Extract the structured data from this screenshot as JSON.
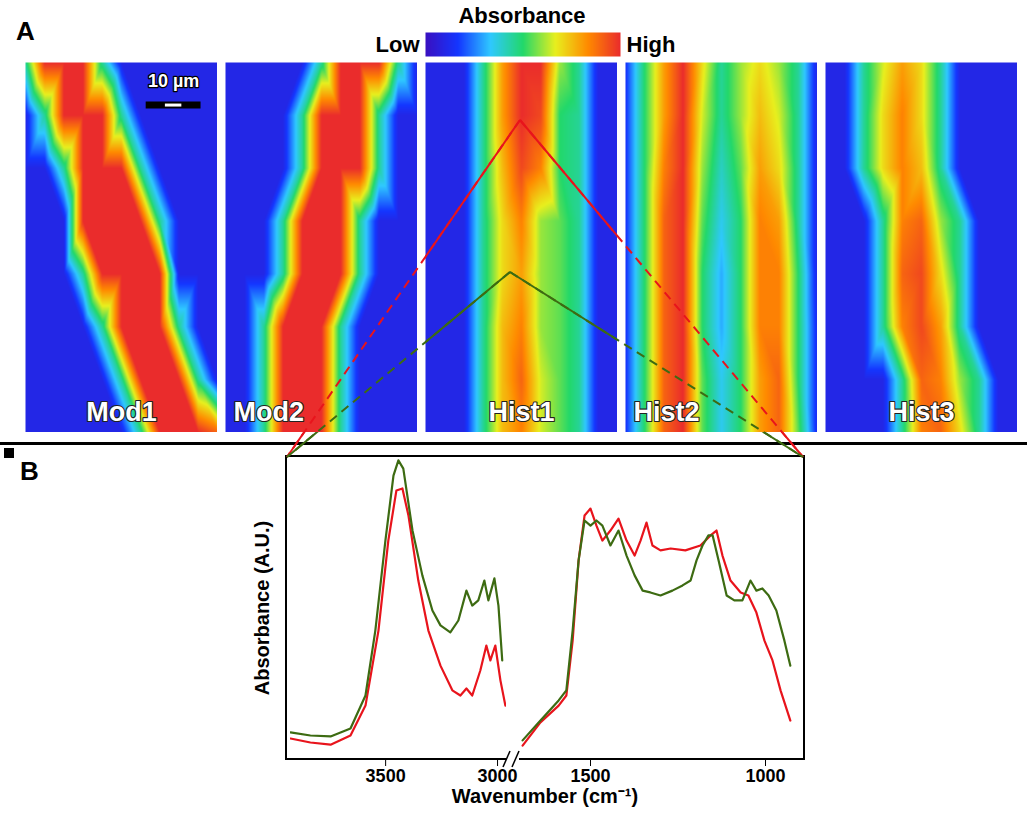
{
  "chart_data": [
    {
      "type": "heatmap",
      "label": "A",
      "colorbar": {
        "title": "Absorbance",
        "range": [
          0,
          1
        ],
        "ticks": [
          {
            "value": 0,
            "label": "Low"
          },
          {
            "value": 1,
            "label": "High"
          }
        ]
      },
      "xlim": [
        0,
        35
      ],
      "ylim": [
        0,
        70
      ],
      "x": [
        0,
        3.5,
        7,
        10.5,
        14,
        17.5,
        21,
        24.5,
        28,
        31.5,
        35
      ],
      "y": [
        0,
        10,
        20,
        30,
        40,
        50,
        60,
        70
      ],
      "scale_bar": {
        "value": 10,
        "label": "10 µm"
      },
      "panels": [
        {
          "title": "Mod1",
          "values": [
            [
              0.45,
              1,
              1,
              1,
              0.45,
              0.1,
              0.1,
              0.1,
              0.1,
              0.1,
              0.1
            ],
            [
              0.1,
              0.45,
              1,
              1,
              1,
              0.45,
              0.1,
              0.1,
              0.1,
              0.1,
              0.1
            ],
            [
              0.1,
              0.1,
              0.45,
              1,
              1,
              1,
              0.45,
              0.1,
              0.1,
              0.1,
              0.1
            ],
            [
              0.1,
              0.1,
              0.1,
              1,
              1,
              1,
              1,
              0.45,
              0.1,
              0.1,
              0.1
            ],
            [
              0.1,
              0.1,
              0.1,
              0.45,
              1,
              1,
              1,
              1,
              0.1,
              0.1,
              0.1
            ],
            [
              0.1,
              0.1,
              0.1,
              0.1,
              0.45,
              1,
              1,
              1,
              0.45,
              0.1,
              0.1
            ],
            [
              0.1,
              0.1,
              0.1,
              0.1,
              0.1,
              0.45,
              1,
              1,
              1,
              0.45,
              0.1
            ],
            [
              0.1,
              0.1,
              0.1,
              0.1,
              0.1,
              0.1,
              0.45,
              1,
              1,
              1,
              0.9
            ]
          ]
        },
        {
          "title": "Mod2",
          "values": [
            [
              0.1,
              0.1,
              0.1,
              0.1,
              0.1,
              0.45,
              1,
              1,
              1,
              0.45,
              0.1
            ],
            [
              0.1,
              0.1,
              0.1,
              0.1,
              0.45,
              1,
              1,
              1,
              0.45,
              0.1,
              0.1
            ],
            [
              0.1,
              0.1,
              0.1,
              0.1,
              0.45,
              1,
              1,
              1,
              0.45,
              0.1,
              0.1
            ],
            [
              0.1,
              0.1,
              0.1,
              0.45,
              1,
              1,
              1,
              0.45,
              0.1,
              0.1,
              0.1
            ],
            [
              0.1,
              0.1,
              0.1,
              0.45,
              1,
              1,
              1,
              0.45,
              0.1,
              0.1,
              0.1
            ],
            [
              0.1,
              0.1,
              0.45,
              1,
              1,
              1,
              0.45,
              0.1,
              0.1,
              0.1,
              0.1
            ],
            [
              0.1,
              0.1,
              0.45,
              1,
              1,
              1,
              0.45,
              0.1,
              0.1,
              0.1,
              0.1
            ],
            [
              0.1,
              0.1,
              0.45,
              1,
              1,
              1,
              0.45,
              0.1,
              0.1,
              0.1,
              0.1
            ]
          ]
        },
        {
          "title": "Hist1",
          "values": [
            [
              0.1,
              0.1,
              0.1,
              0.45,
              0.8,
              1,
              1,
              0.6,
              0.45,
              0.1,
              0.1
            ],
            [
              0.1,
              0.1,
              0.1,
              0.45,
              0.8,
              1,
              0.95,
              0.5,
              0.45,
              0.1,
              0.1
            ],
            [
              0.1,
              0.1,
              0.1,
              0.45,
              0.75,
              0.95,
              0.85,
              0.5,
              0.45,
              0.1,
              0.1
            ],
            [
              0.1,
              0.1,
              0.1,
              0.45,
              0.7,
              0.85,
              0.6,
              0.55,
              0.45,
              0.1,
              0.1
            ],
            [
              0.1,
              0.1,
              0.1,
              0.45,
              0.7,
              0.8,
              0.6,
              0.55,
              0.45,
              0.1,
              0.1
            ],
            [
              0.1,
              0.1,
              0.1,
              0.45,
              0.75,
              0.85,
              0.6,
              0.55,
              0.45,
              0.1,
              0.1
            ],
            [
              0.1,
              0.1,
              0.1,
              0.45,
              0.75,
              0.9,
              0.65,
              0.55,
              0.45,
              0.1,
              0.1
            ],
            [
              0.1,
              0.1,
              0.1,
              0.45,
              0.75,
              0.85,
              0.65,
              0.55,
              0.45,
              0.1,
              0.1
            ]
          ]
        },
        {
          "title": "Hist2",
          "values": [
            [
              0.15,
              0.5,
              0.8,
              1,
              0.7,
              0.45,
              0.6,
              0.7,
              0.6,
              0.45,
              0.1
            ],
            [
              0.15,
              0.5,
              0.8,
              1,
              0.65,
              0.45,
              0.6,
              0.75,
              0.65,
              0.45,
              0.1
            ],
            [
              0.15,
              0.5,
              0.85,
              1,
              0.6,
              0.4,
              0.55,
              0.8,
              0.7,
              0.45,
              0.1
            ],
            [
              0.15,
              0.5,
              0.9,
              1,
              0.55,
              0.35,
              0.5,
              0.85,
              0.8,
              0.45,
              0.1
            ],
            [
              0.15,
              0.5,
              0.9,
              1,
              0.5,
              0.3,
              0.5,
              0.85,
              0.85,
              0.5,
              0.1
            ],
            [
              0.15,
              0.5,
              0.9,
              1,
              0.5,
              0.3,
              0.5,
              0.85,
              0.85,
              0.5,
              0.12
            ],
            [
              0.15,
              0.5,
              0.9,
              1,
              0.55,
              0.35,
              0.5,
              0.8,
              0.9,
              0.5,
              0.12
            ],
            [
              0.15,
              0.5,
              0.9,
              1,
              0.55,
              0.35,
              0.5,
              0.8,
              0.9,
              0.55,
              0.12
            ]
          ]
        },
        {
          "title": "Hist3",
          "values": [
            [
              0.1,
              0.1,
              0.45,
              0.65,
              0.8,
              0.7,
              0.45,
              0.1,
              0.1,
              0.1,
              0.1
            ],
            [
              0.1,
              0.1,
              0.45,
              0.7,
              0.85,
              0.7,
              0.45,
              0.1,
              0.1,
              0.1,
              0.1
            ],
            [
              0.1,
              0.1,
              0.45,
              0.7,
              0.85,
              0.75,
              0.45,
              0.1,
              0.1,
              0.1,
              0.1
            ],
            [
              0.1,
              0.1,
              0.1,
              0.45,
              0.85,
              0.9,
              0.6,
              0.45,
              0.1,
              0.1,
              0.1
            ],
            [
              0.1,
              0.1,
              0.1,
              0.45,
              0.9,
              0.95,
              0.7,
              0.45,
              0.1,
              0.1,
              0.1
            ],
            [
              0.1,
              0.1,
              0.1,
              0.45,
              0.85,
              0.95,
              0.8,
              0.45,
              0.1,
              0.1,
              0.1
            ],
            [
              0.1,
              0.1,
              0.1,
              0.1,
              0.45,
              0.9,
              0.85,
              0.6,
              0.45,
              0.1,
              0.1
            ],
            [
              0.1,
              0.1,
              0.1,
              0.1,
              0.45,
              0.85,
              0.9,
              0.7,
              0.45,
              0.1,
              0.1
            ]
          ]
        }
      ]
    },
    {
      "type": "line",
      "label": "B",
      "xlabel": "Wavenumber (cm⁻¹)",
      "ylabel": "Absorbance (A.U.)",
      "ylim": [
        0,
        1
      ],
      "tick_labels": "x",
      "segments": [
        {
          "xlim": [
            3925,
            2960
          ],
          "xticks": [
            3500,
            3000
          ],
          "series": [
            {
              "color": "#e8141c",
              "x": [
                3925,
                3836,
                3746,
                3657,
                3590,
                3532,
                3488,
                3452,
                3425,
                3398,
                3354,
                3309,
                3255,
                3202,
                3166,
                3139,
                3113,
                3077,
                3050,
                3032,
                3010,
                2987,
                2965
              ],
              "values": [
                0.072,
                0.059,
                0.052,
                0.082,
                0.18,
                0.426,
                0.721,
                0.885,
                0.892,
                0.803,
                0.59,
                0.426,
                0.311,
                0.23,
                0.213,
                0.236,
                0.213,
                0.295,
                0.377,
                0.328,
                0.377,
                0.262,
                0.18
              ]
            },
            {
              "color": "#3d6b12",
              "x": [
                3925,
                3836,
                3746,
                3657,
                3590,
                3546,
                3501,
                3465,
                3443,
                3421,
                3380,
                3336,
                3291,
                3255,
                3211,
                3175,
                3139,
                3113,
                3086,
                3059,
                3041,
                3014,
                2996,
                2979
              ],
              "values": [
                0.092,
                0.082,
                0.079,
                0.105,
                0.213,
                0.426,
                0.721,
                0.934,
                0.984,
                0.957,
                0.754,
                0.607,
                0.492,
                0.443,
                0.42,
                0.459,
                0.557,
                0.508,
                0.525,
                0.59,
                0.525,
                0.597,
                0.508,
                0.328
              ]
            }
          ]
        },
        {
          "xlim": [
            1700,
            900
          ],
          "xticks": [
            1500,
            1000
          ],
          "series": [
            {
              "color": "#e8141c",
              "x": [
                1694,
                1643,
                1591,
                1569,
                1551,
                1534,
                1517,
                1500,
                1483,
                1466,
                1443,
                1420,
                1397,
                1374,
                1357,
                1340,
                1323,
                1300,
                1271,
                1229,
                1186,
                1157,
                1140,
                1123,
                1100,
                1071,
                1049,
                1026,
                1003,
                980,
                957,
                929
              ],
              "values": [
                0.049,
                0.125,
                0.18,
                0.213,
                0.393,
                0.656,
                0.803,
                0.826,
                0.77,
                0.721,
                0.754,
                0.793,
                0.721,
                0.672,
                0.721,
                0.78,
                0.705,
                0.689,
                0.695,
                0.689,
                0.705,
                0.738,
                0.754,
                0.672,
                0.59,
                0.551,
                0.541,
                0.485,
                0.393,
                0.328,
                0.23,
                0.131
              ]
            },
            {
              "color": "#3d6b12",
              "x": [
                1694,
                1643,
                1591,
                1569,
                1551,
                1534,
                1517,
                1500,
                1483,
                1466,
                1443,
                1420,
                1397,
                1374,
                1351,
                1329,
                1300,
                1266,
                1237,
                1214,
                1197,
                1180,
                1163,
                1151,
                1134,
                1111,
                1089,
                1066,
                1043,
                1026,
                1009,
                991,
                969,
                946,
                929
              ],
              "values": [
                0.066,
                0.131,
                0.197,
                0.23,
                0.426,
                0.656,
                0.787,
                0.77,
                0.787,
                0.77,
                0.705,
                0.754,
                0.672,
                0.607,
                0.557,
                0.551,
                0.541,
                0.557,
                0.574,
                0.59,
                0.656,
                0.705,
                0.738,
                0.738,
                0.656,
                0.541,
                0.525,
                0.525,
                0.59,
                0.557,
                0.564,
                0.541,
                0.492,
                0.393,
                0.311
              ]
            }
          ]
        }
      ]
    }
  ]
}
